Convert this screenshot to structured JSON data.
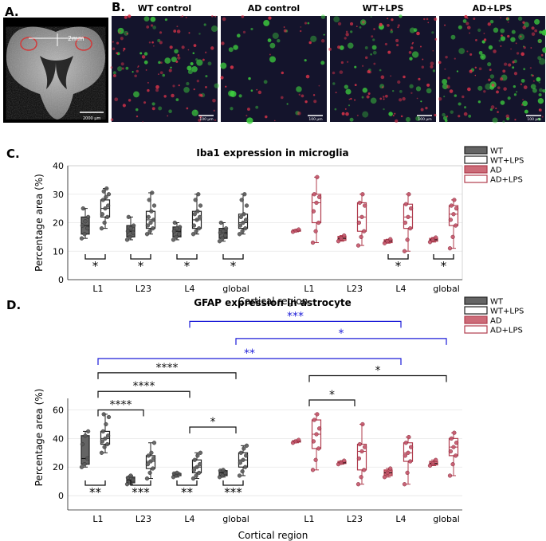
{
  "panel_labels": {
    "a": "A.",
    "b": "B.",
    "c": "C.",
    "d": "D."
  },
  "panel_a": {
    "dim_label": "2mm",
    "scale_bar": "2000 µm"
  },
  "panel_b": {
    "tiles": [
      {
        "title": "WT control",
        "scale_bar": "100 µm"
      },
      {
        "title": "AD control",
        "scale_bar": "100 µm"
      },
      {
        "title": "WT+LPS",
        "scale_bar": "100 µm"
      },
      {
        "title": "AD+LPS",
        "scale_bar": "100 µm"
      }
    ]
  },
  "colors": {
    "wt": "#646464",
    "ad": "#b03c4e",
    "ad_fill": "#cc6b78",
    "comparison_blue": "#1c1cd8",
    "grid": "#e6e6e6"
  },
  "chart_data": [
    {
      "type": "box",
      "title": "Iba1 expression in microglia",
      "xlabel": "Cortical region",
      "ylabel": "Percentage area (%)",
      "ylim": [
        0,
        40
      ],
      "yticks": [
        0,
        10,
        20,
        30,
        40
      ],
      "grid": true,
      "legend": {
        "placement": "outside-right",
        "entries": [
          "WT",
          "WT+LPS",
          "AD",
          "AD+LPS"
        ]
      },
      "categories": [
        "L1",
        "L23",
        "L4",
        "global",
        "L1",
        "L23",
        "L4",
        "global"
      ],
      "series": [
        {
          "name": "WT",
          "region_index": [
            0,
            1,
            2,
            3
          ],
          "boxes": [
            {
              "min": 14.5,
              "q1": 16,
              "median": 19,
              "q3": 22,
              "max": 25,
              "points": [
                14.5,
                16,
                18,
                19,
                20.5,
                22,
                25
              ]
            },
            {
              "min": 14,
              "q1": 15,
              "median": 17,
              "q3": 19,
              "max": 22,
              "points": [
                14,
                15,
                16.5,
                17,
                18,
                19,
                22
              ]
            },
            {
              "min": 14,
              "q1": 15,
              "median": 17,
              "q3": 18.5,
              "max": 20,
              "points": [
                14,
                15,
                16,
                17,
                18,
                18.5,
                20
              ]
            },
            {
              "min": 13.5,
              "q1": 14.5,
              "median": 16.5,
              "q3": 18,
              "max": 20,
              "points": [
                13.5,
                14.5,
                15.5,
                16.5,
                17,
                18,
                20
              ]
            }
          ]
        },
        {
          "name": "WT+LPS",
          "region_index": [
            0,
            1,
            2,
            3
          ],
          "boxes": [
            {
              "min": 18,
              "q1": 22,
              "median": 25,
              "q3": 28,
              "max": 32,
              "points": [
                18,
                20,
                22,
                23,
                25,
                26,
                28,
                29,
                30,
                31,
                32
              ]
            },
            {
              "min": 16,
              "q1": 18,
              "median": 21,
              "q3": 24,
              "max": 30.5,
              "points": [
                16,
                17,
                18,
                19,
                20,
                21,
                22,
                24,
                26,
                28,
                30.5
              ]
            },
            {
              "min": 16,
              "q1": 18,
              "median": 21,
              "q3": 24,
              "max": 30,
              "points": [
                16,
                17,
                18,
                19,
                21,
                22,
                23,
                24,
                26,
                28,
                30
              ]
            },
            {
              "min": 16,
              "q1": 18,
              "median": 20,
              "q3": 23,
              "max": 30,
              "points": [
                16,
                17,
                18,
                19,
                20,
                21,
                22,
                23,
                26,
                28,
                30
              ]
            }
          ]
        },
        {
          "name": "AD",
          "region_index": [
            4,
            5,
            6,
            7
          ],
          "boxes": [
            {
              "min": 16.8,
              "q1": 17,
              "median": 17.2,
              "q3": 17.5,
              "max": 17.6,
              "points": [
                16.8,
                17.2,
                17.6
              ]
            },
            {
              "min": 13.5,
              "q1": 13.8,
              "median": 14.5,
              "q3": 15.2,
              "max": 15.5,
              "points": [
                13.5,
                14.5,
                15.5
              ]
            },
            {
              "min": 12.8,
              "q1": 13,
              "median": 13.5,
              "q3": 14,
              "max": 14.2,
              "points": [
                12.8,
                13.5,
                14.2
              ]
            },
            {
              "min": 13.2,
              "q1": 13.5,
              "median": 14,
              "q3": 14.5,
              "max": 14.8,
              "points": [
                13.2,
                14,
                14.8
              ]
            }
          ]
        },
        {
          "name": "AD+LPS",
          "region_index": [
            4,
            5,
            6,
            7
          ],
          "boxes": [
            {
              "min": 13,
              "q1": 20,
              "median": 27,
              "q3": 30,
              "max": 36,
              "points": [
                13,
                17,
                20,
                24,
                27,
                29,
                30,
                36
              ]
            },
            {
              "min": 12,
              "q1": 17,
              "median": 22,
              "q3": 27,
              "max": 30,
              "points": [
                12,
                15,
                17,
                20,
                22,
                26,
                27,
                30
              ]
            },
            {
              "min": 10,
              "q1": 18,
              "median": 22,
              "q3": 26.5,
              "max": 30,
              "points": [
                10,
                14,
                18,
                20,
                22,
                25,
                26.5,
                30
              ]
            },
            {
              "min": 11,
              "q1": 19,
              "median": 23,
              "q3": 26,
              "max": 28,
              "points": [
                11,
                15,
                19,
                21,
                23,
                25,
                26,
                28
              ]
            }
          ]
        }
      ],
      "significance": [
        {
          "region_index": 0,
          "label": "*"
        },
        {
          "region_index": 1,
          "label": "*"
        },
        {
          "region_index": 2,
          "label": "*"
        },
        {
          "region_index": 3,
          "label": "*"
        },
        {
          "region_index": 6,
          "label": "*"
        },
        {
          "region_index": 7,
          "label": "*"
        }
      ]
    },
    {
      "type": "box",
      "title": "GFAP expression in astrocyte",
      "xlabel": "Cortical region",
      "ylabel": "Percentage area (%)",
      "ylim": [
        -10,
        125
      ],
      "yticks": [
        0,
        20,
        40,
        60
      ],
      "grid": true,
      "legend": {
        "placement": "outside-right",
        "entries": [
          "WT",
          "WT+LPS",
          "AD",
          "AD+LPS"
        ]
      },
      "categories": [
        "L1",
        "L23",
        "L4",
        "global",
        "L1",
        "L23",
        "L4",
        "global"
      ],
      "series": [
        {
          "name": "WT",
          "region_index": [
            0,
            1,
            2,
            3
          ],
          "boxes": [
            {
              "min": 20,
              "q1": 22,
              "median": 26,
              "q3": 42,
              "max": 45,
              "points": [
                20,
                22,
                26,
                36,
                42,
                45
              ]
            },
            {
              "min": 8,
              "q1": 9,
              "median": 11,
              "q3": 13,
              "max": 14,
              "points": [
                8,
                9,
                11,
                12.5,
                14
              ]
            },
            {
              "min": 13,
              "q1": 14,
              "median": 15,
              "q3": 15.5,
              "max": 16,
              "points": [
                13,
                14,
                15,
                15.5,
                16
              ]
            },
            {
              "min": 13,
              "q1": 14,
              "median": 16,
              "q3": 17.5,
              "max": 18,
              "points": [
                13,
                14,
                16,
                17.5,
                18
              ]
            }
          ]
        },
        {
          "name": "WT+LPS",
          "region_index": [
            0,
            1,
            2,
            3
          ],
          "boxes": [
            {
              "min": 30,
              "q1": 36,
              "median": 40,
              "q3": 45,
              "max": 57,
              "points": [
                30,
                34,
                36,
                38,
                40,
                42,
                45,
                50,
                55,
                57
              ]
            },
            {
              "min": 12,
              "q1": 19,
              "median": 24,
              "q3": 28,
              "max": 37,
              "points": [
                12,
                16,
                19,
                22,
                24,
                26,
                28,
                30,
                37
              ]
            },
            {
              "min": 12,
              "q1": 16,
              "median": 20,
              "q3": 25,
              "max": 30,
              "points": [
                12,
                14,
                16,
                18,
                20,
                22,
                25,
                28,
                30
              ]
            },
            {
              "min": 14,
              "q1": 20,
              "median": 25,
              "q3": 30,
              "max": 35,
              "points": [
                14,
                17,
                20,
                23,
                25,
                28,
                30,
                33,
                35
              ]
            }
          ]
        },
        {
          "name": "AD",
          "region_index": [
            4,
            5,
            6,
            7
          ],
          "boxes": [
            {
              "min": 37,
              "q1": 37.5,
              "median": 38,
              "q3": 38.5,
              "max": 39,
              "points": [
                37,
                38,
                39
              ]
            },
            {
              "min": 22,
              "q1": 22.5,
              "median": 23,
              "q3": 24,
              "max": 24.5,
              "points": [
                22,
                23,
                24.5
              ]
            },
            {
              "min": 13,
              "q1": 14,
              "median": 16,
              "q3": 18,
              "max": 19,
              "points": [
                13,
                16,
                19
              ]
            },
            {
              "min": 21,
              "q1": 21.5,
              "median": 22.5,
              "q3": 24,
              "max": 25,
              "points": [
                21,
                22.5,
                25
              ]
            }
          ]
        },
        {
          "name": "AD+LPS",
          "region_index": [
            4,
            5,
            6,
            7
          ],
          "boxes": [
            {
              "min": 18,
              "q1": 33,
              "median": 43,
              "q3": 53,
              "max": 57,
              "points": [
                18,
                25,
                33,
                38,
                43,
                47,
                53,
                57
              ]
            },
            {
              "min": 8,
              "q1": 18,
              "median": 31,
              "q3": 36,
              "max": 50,
              "points": [
                8,
                13,
                18,
                26,
                31,
                34,
                36,
                50
              ]
            },
            {
              "min": 8,
              "q1": 24,
              "median": 30,
              "q3": 37,
              "max": 41,
              "points": [
                8,
                16,
                24,
                28,
                30,
                34,
                37,
                41
              ]
            },
            {
              "min": 14,
              "q1": 28,
              "median": 34,
              "q3": 40,
              "max": 44,
              "points": [
                14,
                22,
                28,
                31,
                34,
                37,
                40,
                44
              ]
            }
          ]
        }
      ],
      "significance": [
        {
          "region_index": 0,
          "label": "**"
        },
        {
          "region_index": 1,
          "label": "***"
        },
        {
          "region_index": 2,
          "label": "**"
        },
        {
          "region_index": 3,
          "label": "***"
        }
      ],
      "brackets": [
        {
          "from": 0,
          "to": 1,
          "label": "****",
          "level": 60,
          "color": "black"
        },
        {
          "from": 0,
          "to": 2,
          "label": "****",
          "level": 73,
          "color": "black"
        },
        {
          "from": 0,
          "to": 3,
          "label": "****",
          "level": 86,
          "color": "black"
        },
        {
          "from": 2,
          "to": 3,
          "label": "*",
          "level": 48,
          "color": "black"
        },
        {
          "from": 4,
          "to": 5,
          "label": "*",
          "level": 67,
          "color": "black"
        },
        {
          "from": 4,
          "to": 7,
          "label": "*",
          "level": 84,
          "color": "black"
        },
        {
          "from": 0,
          "to": 6,
          "label": "**",
          "level": 96,
          "color": "blue"
        },
        {
          "from": 3,
          "to": 7,
          "label": "*",
          "level": 110,
          "color": "blue"
        },
        {
          "from": 2,
          "to": 6,
          "label": "***",
          "level": 122,
          "color": "blue"
        }
      ]
    }
  ]
}
